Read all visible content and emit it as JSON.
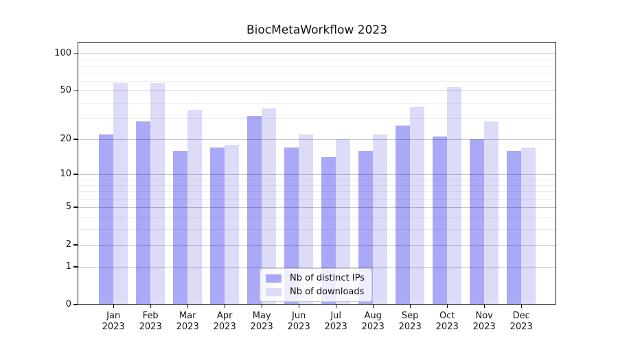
{
  "header": {
    "title": "BiocMetaWorkflow 2023"
  },
  "chart_data": {
    "type": "bar",
    "title": "BiocMetaWorkflow 2023",
    "categories": [
      "Jan 2023",
      "Feb 2023",
      "Mar 2023",
      "Apr 2023",
      "May 2023",
      "Jun 2023",
      "Jul 2023",
      "Aug 2023",
      "Sep 2023",
      "Oct 2023",
      "Nov 2023",
      "Dec 2023"
    ],
    "series": [
      {
        "name": "Nb of distinct IPs",
        "color": "#a9a9f8",
        "values": [
          22,
          28,
          16,
          17,
          31,
          17,
          14,
          16,
          26,
          21,
          20,
          16
        ]
      },
      {
        "name": "Nb of downloads",
        "color": "#dcdcf9",
        "values": [
          58,
          58,
          35,
          18,
          36,
          22,
          20,
          22,
          37,
          54,
          28,
          17
        ]
      }
    ],
    "xlabel": "",
    "ylabel": "",
    "y_scale": "log1p",
    "y_major_ticks": [
      0,
      1,
      2,
      5,
      10,
      20,
      50,
      100
    ],
    "y_minor_gridlines": [
      3,
      4,
      6,
      7,
      8,
      9,
      30,
      40,
      60,
      70,
      80,
      90
    ],
    "ylim": [
      0,
      125
    ],
    "grid": "horizontal",
    "legend_position": "lower-center"
  }
}
